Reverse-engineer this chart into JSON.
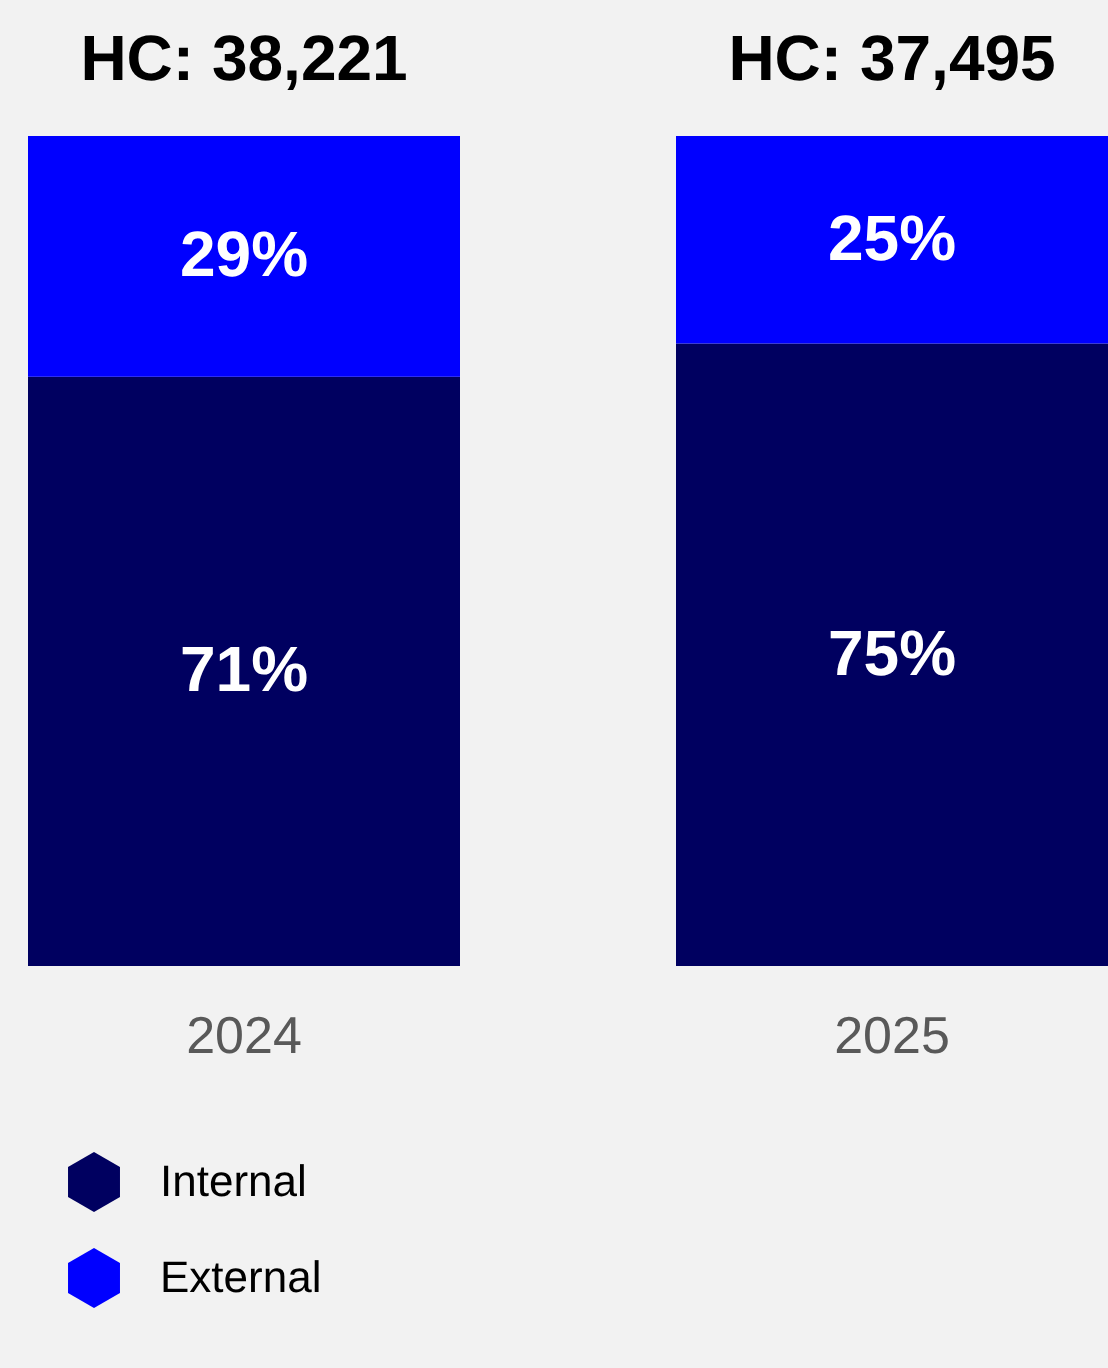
{
  "chart_data": {
    "type": "bar",
    "stacked": true,
    "categories": [
      "2024",
      "2025"
    ],
    "series": [
      {
        "name": "Internal",
        "color": "#000060",
        "values": [
          71,
          75
        ],
        "value_labels": [
          "71%",
          "75%"
        ]
      },
      {
        "name": "External",
        "color": "#0000ff",
        "values": [
          29,
          25
        ],
        "value_labels": [
          "29%",
          "25%"
        ]
      }
    ],
    "annotations": [
      {
        "text": "HC: 38,221",
        "x": "2024",
        "y": 100
      },
      {
        "text": "HC: 37,495",
        "x": "2025",
        "y": 100
      }
    ],
    "legend": "bottom left",
    "grid": false
  }
}
